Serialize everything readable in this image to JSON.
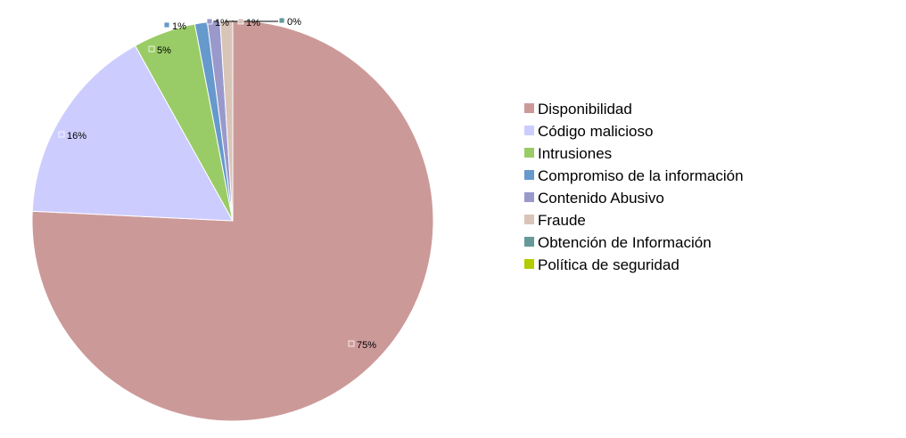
{
  "chart_data": {
    "type": "pie",
    "categories": [
      "Disponibilidad",
      "Código malicioso",
      "Intrusiones",
      "Compromiso de la información",
      "Contenido Abusivo",
      "Fraude",
      "Obtención de Información",
      "Política de seguridad"
    ],
    "values": [
      75,
      16,
      5,
      1,
      1,
      1,
      0,
      0
    ],
    "labels": [
      "75%",
      "16%",
      "5%",
      "1%",
      "1%",
      "1%",
      "0%",
      ""
    ],
    "colors": [
      "#cc9999",
      "#ccccff",
      "#99cc66",
      "#6699cc",
      "#9999cc",
      "#d9c4b8",
      "#669999",
      "#b3cc00"
    ],
    "legend_position": "right",
    "start": "top",
    "direction": "clockwise"
  }
}
